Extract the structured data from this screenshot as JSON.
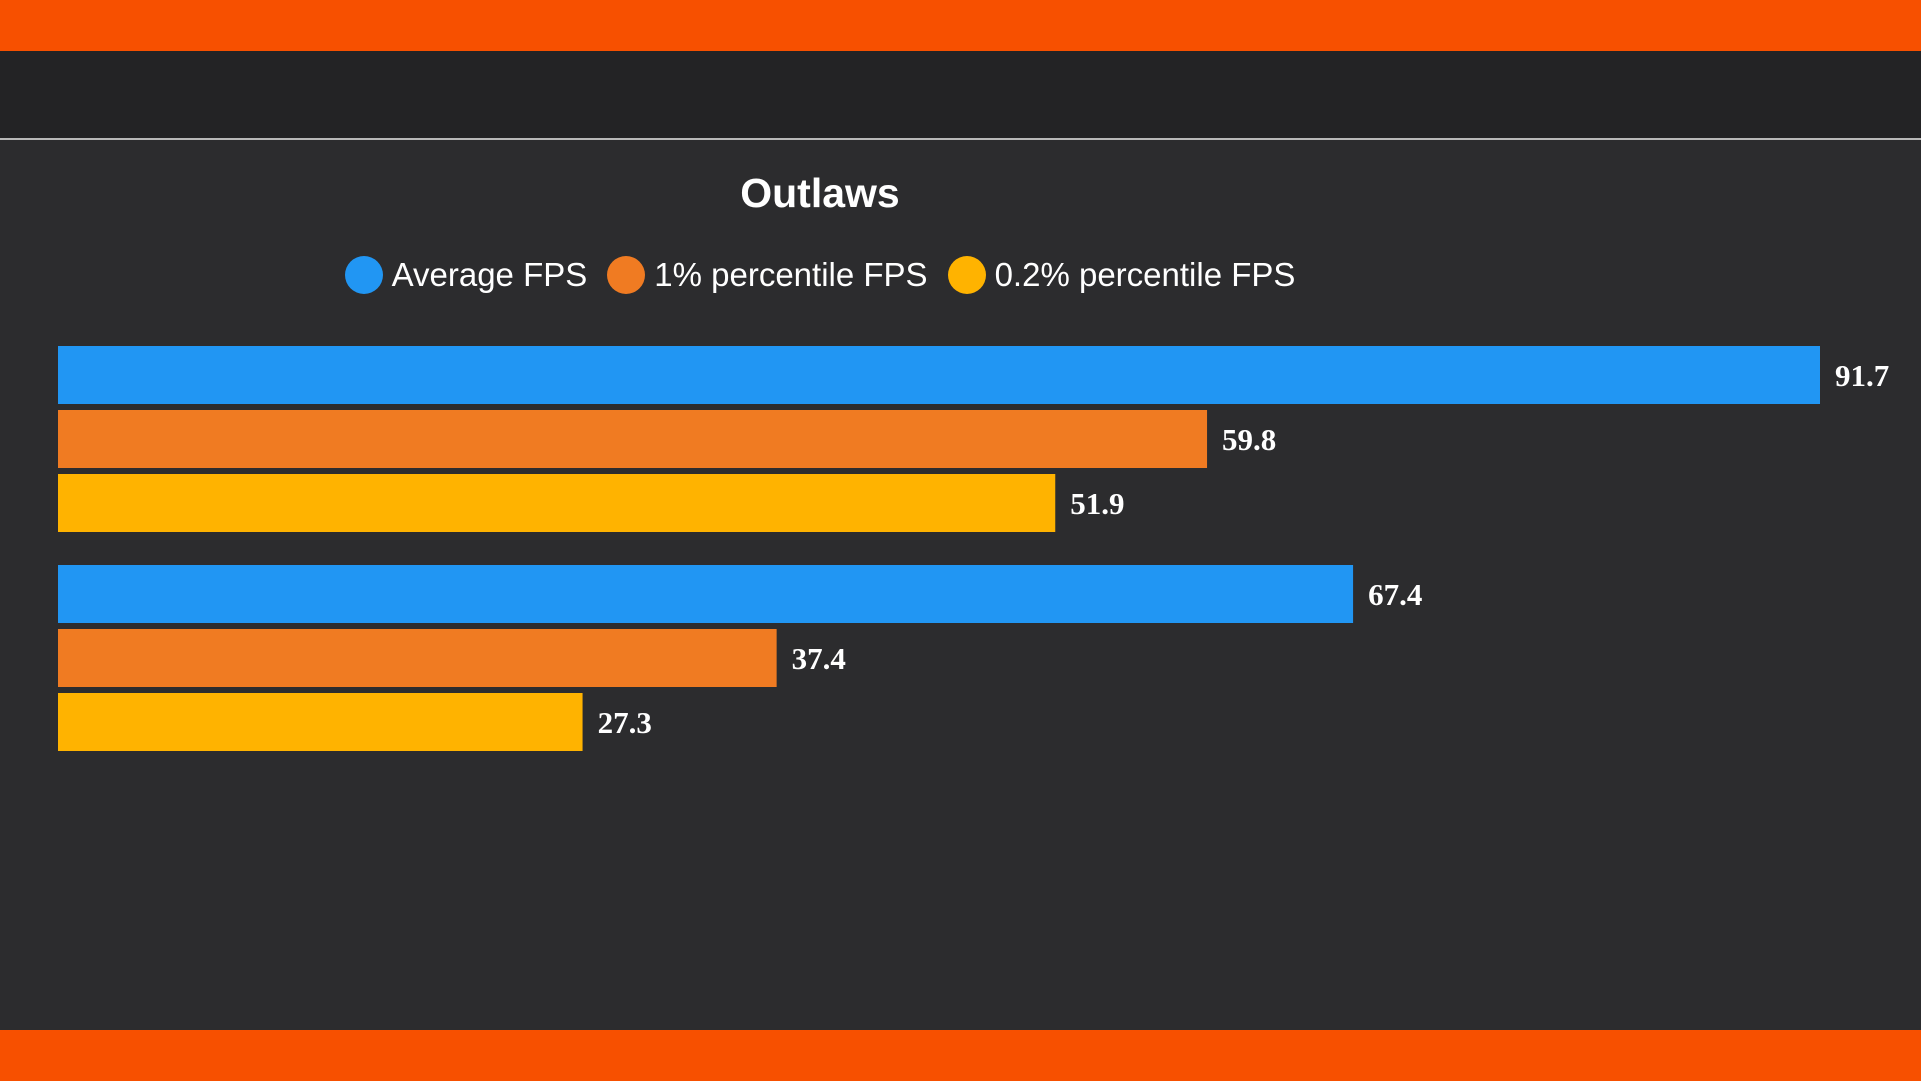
{
  "chart_data": {
    "type": "bar",
    "orientation": "horizontal",
    "title": "Outlaws",
    "categories": [
      "",
      ""
    ],
    "series": [
      {
        "name": "Average FPS",
        "color": "#2196f3",
        "values": [
          91.7,
          67.4
        ]
      },
      {
        "name": "1% percentile FPS",
        "color": "#f07b22",
        "values": [
          59.8,
          37.4
        ]
      },
      {
        "name": "0.2% percentile FPS",
        "color": "#ffb300",
        "values": [
          51.9,
          27.3
        ]
      }
    ],
    "xlim": [
      0,
      91.7
    ],
    "grid": false,
    "legend": "top-center",
    "data_labels": true
  },
  "colors": {
    "accent_band": "#f75000",
    "background": "#2c2c2e",
    "header_strip": "#232325"
  }
}
